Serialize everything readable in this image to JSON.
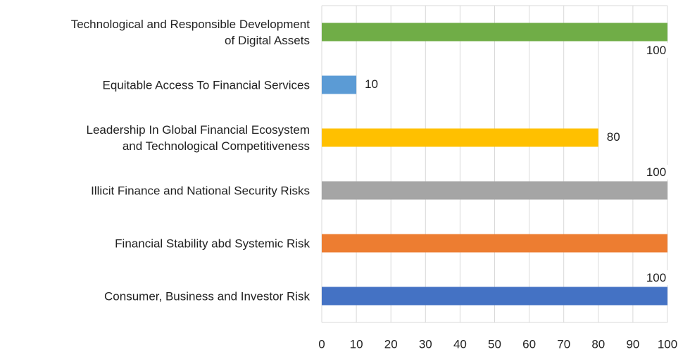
{
  "chart_data": {
    "type": "barh",
    "categories": [
      "Technological and Responsible Development\nof Digital Assets",
      "Equitable Access To Financial Services",
      "Leadership In Global Financial Ecosystem\nand Technological Competitiveness",
      "Illicit Finance and National Security Risks",
      "Financial Stability abd Systemic Risk",
      "Consumer, Business and Investor Risk"
    ],
    "values": [
      100,
      10,
      80,
      100,
      100,
      100
    ],
    "value_labels": [
      "100",
      "10",
      "80",
      "100",
      null,
      "100"
    ],
    "colors": [
      "#70ad47",
      "#5b9bd5",
      "#ffc000",
      "#a5a5a5",
      "#ed7d31",
      "#4472c4"
    ],
    "xlim": [
      0,
      100
    ],
    "xticks": [
      0,
      10,
      20,
      30,
      40,
      50,
      60,
      70,
      80,
      90,
      100
    ],
    "grid": true
  }
}
